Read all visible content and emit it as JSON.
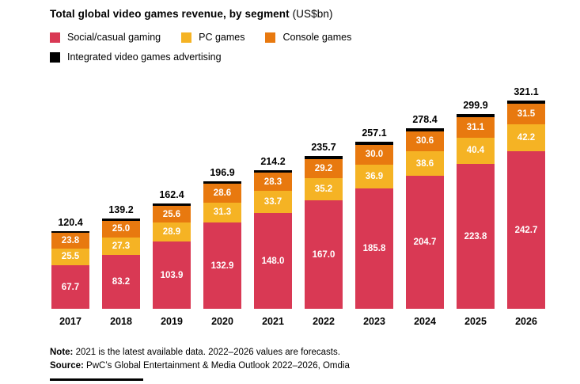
{
  "title": {
    "main": "Total global video games revenue, by segment",
    "unit": " (US$bn)"
  },
  "legend": {
    "items": [
      {
        "label": "Social/casual gaming",
        "color": "#d93954"
      },
      {
        "label": "PC games",
        "color": "#f5b324"
      },
      {
        "label": "Console games",
        "color": "#e8790f"
      },
      {
        "label": "Integrated video games advertising",
        "color": "#000000"
      }
    ]
  },
  "chart_data": {
    "type": "bar",
    "stacked": true,
    "title": "Total global video games revenue, by segment (US$bn)",
    "categories": [
      "2017",
      "2018",
      "2019",
      "2020",
      "2021",
      "2022",
      "2023",
      "2024",
      "2025",
      "2026"
    ],
    "totals": [
      120.4,
      139.2,
      162.4,
      196.9,
      214.2,
      235.7,
      257.1,
      278.4,
      299.9,
      321.1
    ],
    "series": [
      {
        "name": "Social/casual gaming",
        "color": "#d93954",
        "show_labels": true,
        "values": [
          67.7,
          83.2,
          103.9,
          132.9,
          148.0,
          167.0,
          185.8,
          204.7,
          223.8,
          242.7
        ]
      },
      {
        "name": "PC games",
        "color": "#f5b324",
        "show_labels": true,
        "values": [
          25.5,
          27.3,
          28.9,
          31.3,
          33.7,
          35.2,
          36.9,
          38.6,
          40.4,
          42.2
        ]
      },
      {
        "name": "Console games",
        "color": "#e8790f",
        "show_labels": true,
        "values": [
          23.8,
          25.0,
          25.6,
          28.6,
          28.3,
          29.2,
          30.0,
          30.6,
          31.1,
          31.5
        ]
      },
      {
        "name": "Integrated video games advertising",
        "color": "#000000",
        "show_labels": false,
        "values_estimated_as_remainder": true,
        "values": [
          3.4,
          3.7,
          4.0,
          4.1,
          4.2,
          4.3,
          4.4,
          4.5,
          4.6,
          4.7
        ]
      }
    ],
    "stack_order": "bottom_to_top",
    "ylim": [
      0,
      330
    ],
    "value_format": "one_decimal",
    "data_labels": "white bold values inside segments, bold totals above bars, years below bars",
    "grid": false,
    "legend_position": "top-left, two rows"
  },
  "note": {
    "label": "Note:",
    "text": " 2021 is the latest available data. 2022–2026 values are forecasts."
  },
  "source": {
    "label": "Source:",
    "text": " PwC’s Global Entertainment & Media Outlook 2022–2026, Omdia"
  }
}
